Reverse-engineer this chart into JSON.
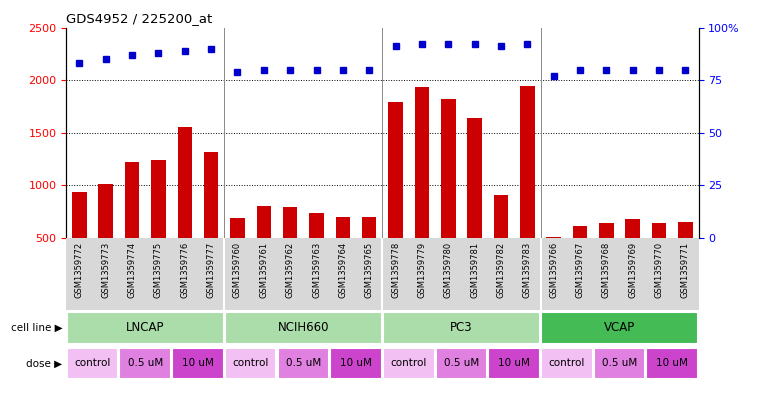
{
  "title": "GDS4952 / 225200_at",
  "samples": [
    "GSM1359772",
    "GSM1359773",
    "GSM1359774",
    "GSM1359775",
    "GSM1359776",
    "GSM1359777",
    "GSM1359760",
    "GSM1359761",
    "GSM1359762",
    "GSM1359763",
    "GSM1359764",
    "GSM1359765",
    "GSM1359778",
    "GSM1359779",
    "GSM1359780",
    "GSM1359781",
    "GSM1359782",
    "GSM1359783",
    "GSM1359766",
    "GSM1359767",
    "GSM1359768",
    "GSM1359769",
    "GSM1359770",
    "GSM1359771"
  ],
  "counts": [
    940,
    1010,
    1220,
    1240,
    1550,
    1320,
    690,
    800,
    790,
    740,
    700,
    700,
    1790,
    1930,
    1820,
    1640,
    910,
    1940,
    510,
    610,
    640,
    680,
    640,
    650
  ],
  "percentile_ranks": [
    83,
    85,
    87,
    88,
    89,
    90,
    79,
    80,
    80,
    80,
    80,
    80,
    91,
    92,
    92,
    92,
    91,
    92,
    77,
    80,
    80,
    80,
    80,
    80
  ],
  "cell_lines": [
    "LNCAP",
    "NCIH660",
    "PC3",
    "VCAP"
  ],
  "cell_line_ranges": [
    [
      0,
      6
    ],
    [
      6,
      12
    ],
    [
      12,
      18
    ],
    [
      18,
      24
    ]
  ],
  "cell_line_light_color": "#aaddaa",
  "cell_line_dark_color": "#44bb55",
  "dose_labels_per_group": [
    "control",
    "0.5 uM",
    "10 uM"
  ],
  "dose_ranges": [
    [
      0,
      2
    ],
    [
      2,
      4
    ],
    [
      4,
      6
    ],
    [
      6,
      8
    ],
    [
      8,
      10
    ],
    [
      10,
      12
    ],
    [
      12,
      14
    ],
    [
      14,
      16
    ],
    [
      16,
      18
    ],
    [
      18,
      20
    ],
    [
      20,
      22
    ],
    [
      22,
      24
    ]
  ],
  "dose_label_list": [
    "control",
    "0.5 uM",
    "10 uM",
    "control",
    "0.5 uM",
    "10 uM",
    "control",
    "0.5 uM",
    "10 uM",
    "control",
    "0.5 uM",
    "10 uM"
  ],
  "dose_color_light": "#f2c0f2",
  "dose_color_mid": "#e080e0",
  "dose_color_dark": "#cc44cc",
  "bar_color": "#cc0000",
  "dot_color": "#0000cc",
  "ylim_left": [
    500,
    2500
  ],
  "ylim_right": [
    0,
    100
  ],
  "yticks_left": [
    500,
    1000,
    1500,
    2000,
    2500
  ],
  "yticks_right": [
    0,
    25,
    50,
    75,
    100
  ],
  "dotted_lines": [
    1000,
    1500,
    2000
  ],
  "bar_width": 0.55,
  "sample_label_fontsize": 6.0,
  "cell_line_fontsize": 8.5,
  "dose_fontsize": 7.5
}
